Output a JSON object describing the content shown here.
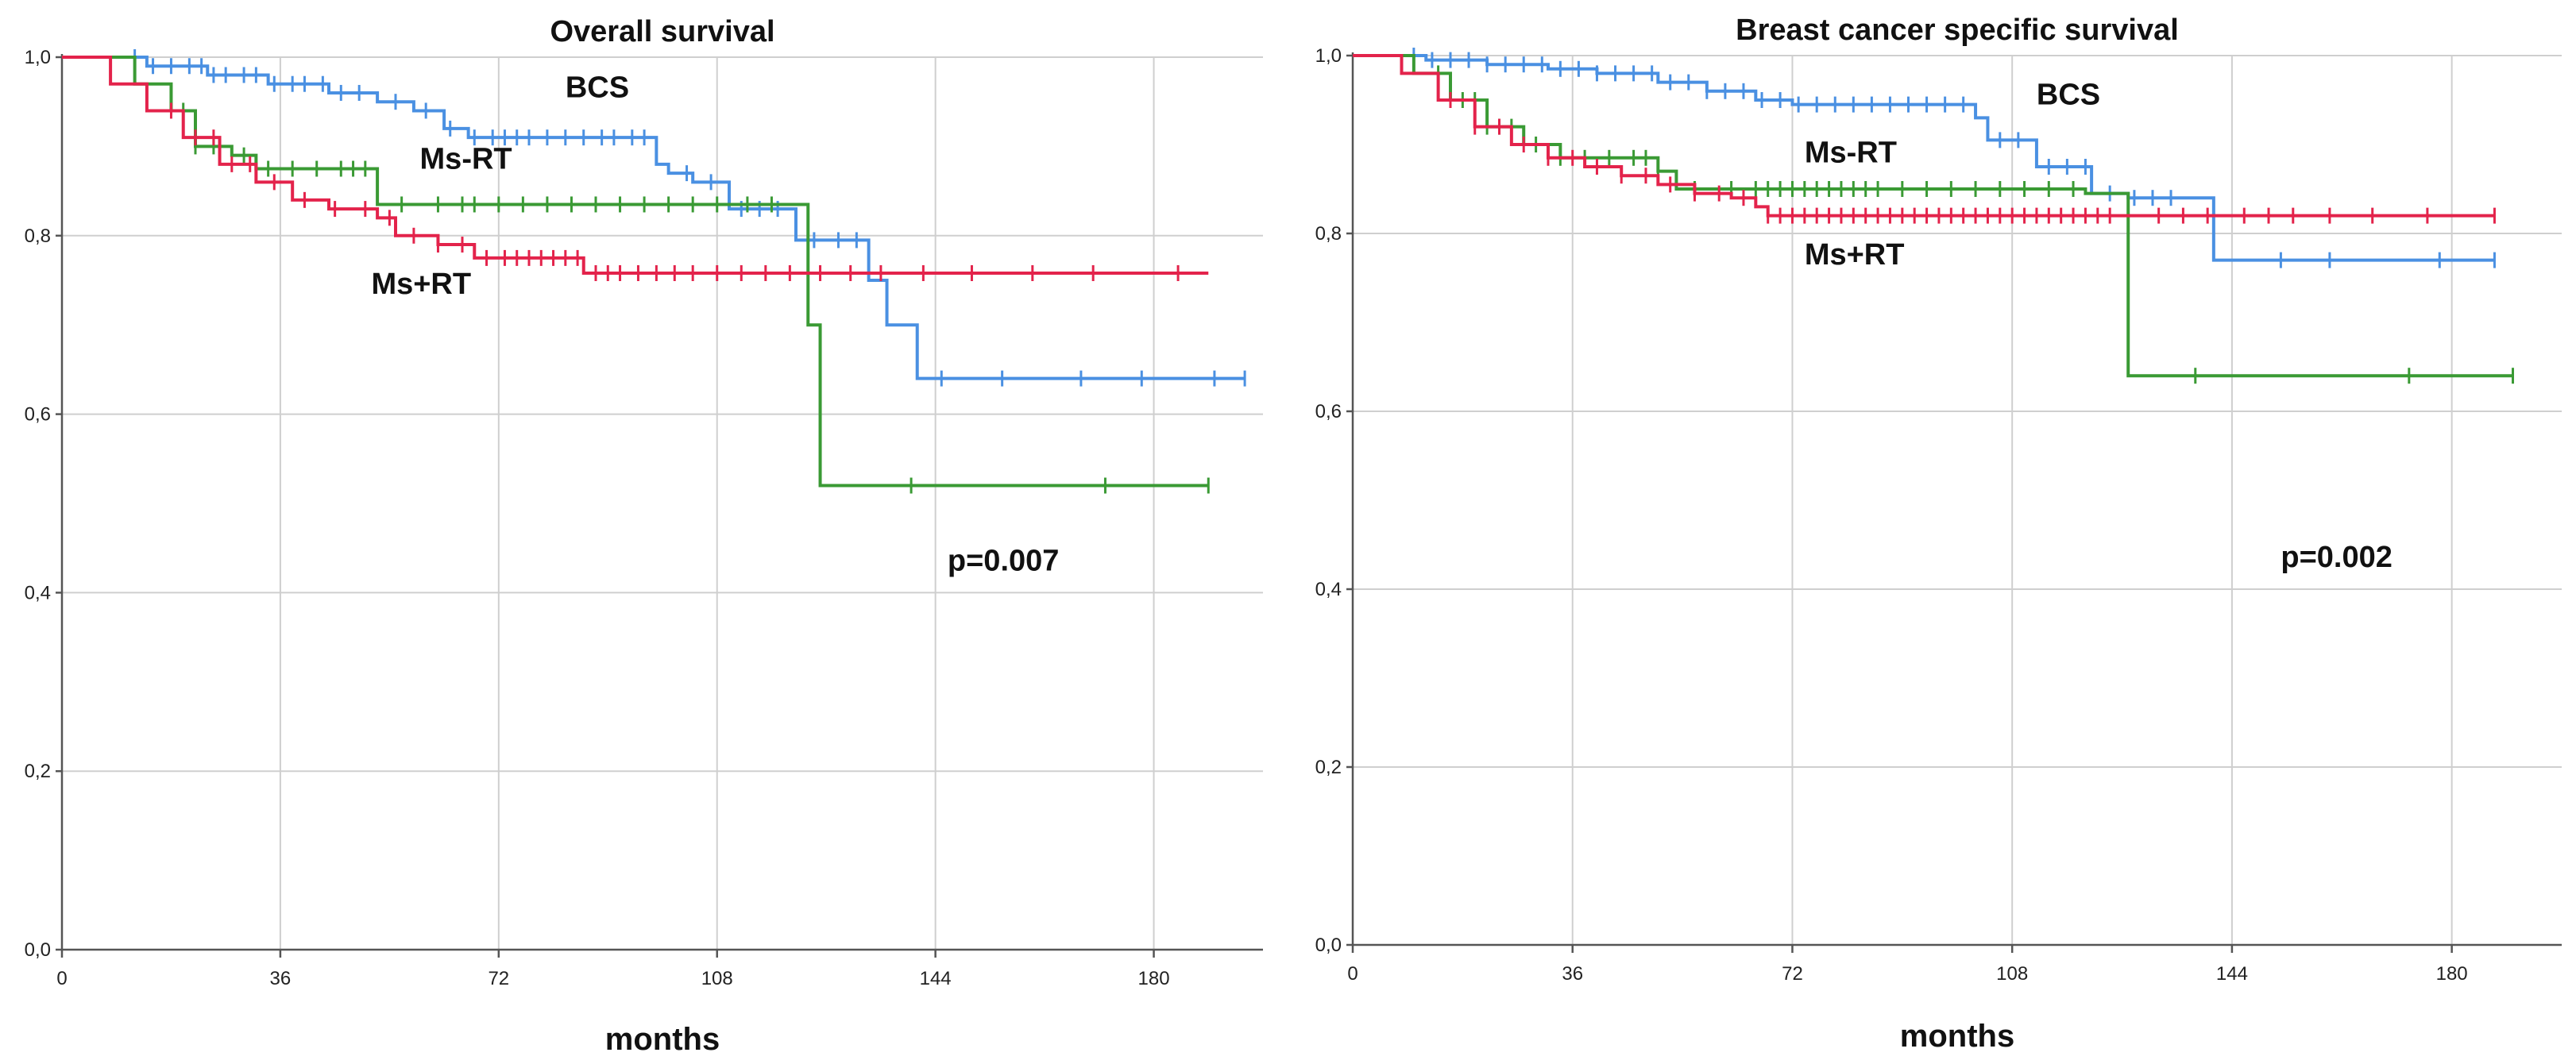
{
  "chart_data": [
    {
      "type": "line",
      "title": "Overall survival",
      "xlabel": "months",
      "ylabel": "",
      "xlim": [
        0,
        198
      ],
      "ylim": [
        0,
        1
      ],
      "x_ticks": [
        0,
        36,
        72,
        108,
        144,
        180
      ],
      "x_tick_labels": [
        "0",
        "36",
        "72",
        "108",
        "144",
        "180"
      ],
      "y_ticks": [
        0,
        0.2,
        0.4,
        0.6,
        0.8,
        1.0
      ],
      "y_tick_labels": [
        "0,0",
        "0,2",
        "0,4",
        "0,6",
        "0,8",
        "1,0"
      ],
      "grid": true,
      "annotations": [
        {
          "text": "BCS",
          "x": 83,
          "y": 0.955
        },
        {
          "text": "Ms-RT",
          "x": 59,
          "y": 0.875
        },
        {
          "text": "Ms+RT",
          "x": 51,
          "y": 0.735
        },
        {
          "text": "p=0.007",
          "x": 146,
          "y": 0.425
        }
      ],
      "series": [
        {
          "name": "BCS",
          "color": "#4a90e2",
          "steps": [
            [
              0,
              1.0
            ],
            [
              14,
              0.99
            ],
            [
              24,
              0.98
            ],
            [
              34,
              0.97
            ],
            [
              44,
              0.96
            ],
            [
              52,
              0.95
            ],
            [
              58,
              0.94
            ],
            [
              63,
              0.92
            ],
            [
              67,
              0.91
            ],
            [
              98,
              0.88
            ],
            [
              100,
              0.87
            ],
            [
              104,
              0.86
            ],
            [
              110,
              0.83
            ],
            [
              120,
              0.83
            ],
            [
              121,
              0.795
            ],
            [
              133,
              0.75
            ],
            [
              136,
              0.7
            ],
            [
              141,
              0.64
            ],
            [
              195,
              0.64
            ]
          ],
          "censored": [
            12,
            15,
            18,
            21,
            23,
            25,
            27,
            30,
            32,
            35,
            38,
            40,
            43,
            46,
            49,
            55,
            60,
            64,
            68,
            71,
            73,
            75,
            77,
            80,
            83,
            86,
            89,
            91,
            94,
            96,
            103,
            107,
            112,
            115,
            118,
            124,
            128,
            131,
            145,
            155,
            168,
            178,
            190,
            195
          ]
        },
        {
          "name": "Ms-RT",
          "color": "#3a9a34",
          "steps": [
            [
              0,
              1.0
            ],
            [
              12,
              0.97
            ],
            [
              18,
              0.94
            ],
            [
              22,
              0.9
            ],
            [
              28,
              0.89
            ],
            [
              32,
              0.875
            ],
            [
              52,
              0.835
            ],
            [
              122,
              0.835
            ],
            [
              123,
              0.7
            ],
            [
              125,
              0.52
            ],
            [
              189,
              0.52
            ]
          ],
          "censored": [
            20,
            22,
            25,
            30,
            34,
            38,
            42,
            46,
            48,
            50,
            56,
            62,
            66,
            68,
            72,
            76,
            80,
            84,
            88,
            92,
            96,
            100,
            104,
            108,
            113,
            117,
            140,
            172,
            189
          ]
        },
        {
          "name": "Ms+RT",
          "color": "#e3234b",
          "steps": [
            [
              0,
              1.0
            ],
            [
              8,
              0.97
            ],
            [
              14,
              0.94
            ],
            [
              20,
              0.91
            ],
            [
              26,
              0.88
            ],
            [
              32,
              0.86
            ],
            [
              38,
              0.84
            ],
            [
              44,
              0.83
            ],
            [
              52,
              0.82
            ],
            [
              55,
              0.8
            ],
            [
              62,
              0.79
            ],
            [
              68,
              0.775
            ],
            [
              86,
              0.758
            ],
            [
              189,
              0.758
            ]
          ],
          "censored": [
            18,
            22,
            25,
            28,
            31,
            35,
            40,
            45,
            50,
            54,
            58,
            62,
            66,
            70,
            73,
            75,
            77,
            79,
            81,
            83,
            85,
            88,
            90,
            92,
            95,
            98,
            101,
            104,
            108,
            112,
            116,
            120,
            125,
            130,
            135,
            142,
            150,
            160,
            170,
            184
          ]
        }
      ]
    },
    {
      "type": "line",
      "title": "Breast cancer specific survival",
      "xlabel": "months",
      "ylabel": "",
      "xlim": [
        0,
        198
      ],
      "ylim": [
        0,
        1
      ],
      "x_ticks": [
        0,
        36,
        72,
        108,
        144,
        180
      ],
      "x_tick_labels": [
        "0",
        "36",
        "72",
        "108",
        "144",
        "180"
      ],
      "y_ticks": [
        0,
        0.2,
        0.4,
        0.6,
        0.8,
        1.0
      ],
      "y_tick_labels": [
        "0,0",
        "0,2",
        "0,4",
        "0,6",
        "0,8",
        "1,0"
      ],
      "grid": true,
      "annotations": [
        {
          "text": "BCS",
          "x": 112,
          "y": 0.945
        },
        {
          "text": "Ms-RT",
          "x": 74,
          "y": 0.88
        },
        {
          "text": "Ms+RT",
          "x": 74,
          "y": 0.765
        },
        {
          "text": "p=0.002",
          "x": 152,
          "y": 0.425
        }
      ],
      "series": [
        {
          "name": "BCS",
          "color": "#4a90e2",
          "steps": [
            [
              0,
              1.0
            ],
            [
              12,
              0.995
            ],
            [
              22,
              0.99
            ],
            [
              32,
              0.985
            ],
            [
              40,
              0.98
            ],
            [
              50,
              0.97
            ],
            [
              58,
              0.96
            ],
            [
              66,
              0.95
            ],
            [
              72,
              0.945
            ],
            [
              102,
              0.93
            ],
            [
              104,
              0.905
            ],
            [
              112,
              0.875
            ],
            [
              121,
              0.845
            ],
            [
              127,
              0.84
            ],
            [
              141,
              0.77
            ],
            [
              187,
              0.77
            ]
          ],
          "censored": [
            10,
            13,
            16,
            19,
            22,
            25,
            28,
            31,
            34,
            37,
            40,
            43,
            46,
            49,
            52,
            55,
            58,
            61,
            64,
            67,
            70,
            73,
            76,
            79,
            82,
            85,
            88,
            91,
            94,
            97,
            100,
            106,
            109,
            114,
            117,
            120,
            124,
            128,
            131,
            134,
            152,
            160,
            178,
            187
          ]
        },
        {
          "name": "Ms-RT",
          "color": "#3a9a34",
          "steps": [
            [
              0,
              1.0
            ],
            [
              10,
              0.98
            ],
            [
              16,
              0.95
            ],
            [
              22,
              0.92
            ],
            [
              28,
              0.9
            ],
            [
              34,
              0.885
            ],
            [
              50,
              0.87
            ],
            [
              53,
              0.85
            ],
            [
              120,
              0.845
            ],
            [
              126,
              0.845
            ],
            [
              127,
              0.64
            ],
            [
              190,
              0.64
            ]
          ],
          "censored": [
            14,
            16,
            18,
            20,
            22,
            24,
            26,
            30,
            34,
            38,
            42,
            46,
            48,
            50,
            56,
            62,
            66,
            68,
            70,
            72,
            74,
            76,
            78,
            80,
            82,
            84,
            86,
            90,
            94,
            98,
            102,
            106,
            110,
            114,
            118,
            138,
            173,
            190
          ]
        },
        {
          "name": "Ms+RT",
          "color": "#e3234b",
          "steps": [
            [
              0,
              1.0
            ],
            [
              8,
              0.98
            ],
            [
              14,
              0.95
            ],
            [
              20,
              0.92
            ],
            [
              26,
              0.9
            ],
            [
              32,
              0.885
            ],
            [
              38,
              0.875
            ],
            [
              44,
              0.865
            ],
            [
              50,
              0.855
            ],
            [
              56,
              0.845
            ],
            [
              62,
              0.84
            ],
            [
              66,
              0.83
            ],
            [
              68,
              0.82
            ],
            [
              187,
              0.82
            ]
          ],
          "censored": [
            16,
            20,
            24,
            28,
            32,
            36,
            40,
            44,
            48,
            52,
            56,
            60,
            64,
            68,
            70,
            72,
            74,
            76,
            78,
            80,
            82,
            84,
            86,
            88,
            90,
            92,
            94,
            96,
            98,
            100,
            102,
            104,
            106,
            108,
            110,
            112,
            114,
            116,
            118,
            120,
            122,
            124,
            132,
            136,
            140,
            146,
            150,
            154,
            160,
            167,
            176,
            187
          ]
        }
      ]
    }
  ]
}
